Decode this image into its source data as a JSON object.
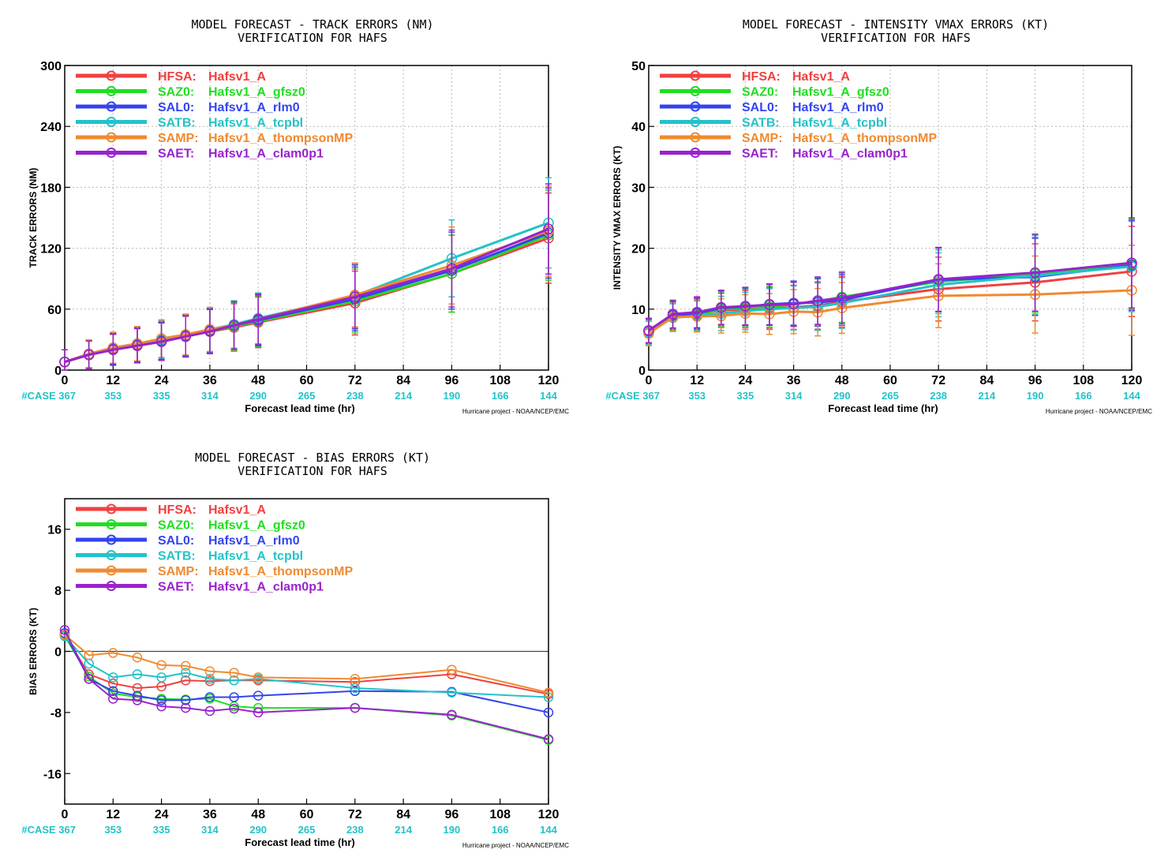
{
  "chart_data": [
    {
      "type": "line",
      "title": "MODEL FORECAST - TRACK ERRORS (NM)",
      "subtitle": "VERIFICATION FOR HAFS",
      "xlabel": "Forecast lead time (hr)",
      "ylabel": "TRACK ERRORS (NM)",
      "xlim": [
        0,
        120
      ],
      "ylim": [
        0,
        300
      ],
      "x_ticks": [
        0,
        12,
        24,
        36,
        48,
        60,
        72,
        84,
        96,
        108,
        120
      ],
      "y_ticks": [
        0,
        60,
        120,
        180,
        240,
        300
      ],
      "case_label": "#CASE",
      "case_counts": [
        "367",
        "353",
        "335",
        "314",
        "290",
        "265",
        "238",
        "214",
        "190",
        "166",
        "144"
      ],
      "credit": "Hurricane project - NOAA/NCEP/EMC",
      "grid": true,
      "legend_position": "top-left",
      "error_bars": true,
      "x": [
        0,
        6,
        12,
        18,
        24,
        30,
        36,
        42,
        48,
        72,
        96,
        120
      ],
      "series": [
        {
          "code": "HFSA:",
          "name": "Hafsv1_A",
          "color": "#f04040",
          "values": [
            8,
            15,
            20,
            24,
            28,
            33,
            38,
            42,
            47,
            66,
            95,
            130
          ]
        },
        {
          "code": "SAZ0:",
          "name": "Hafsv1_A_gfsz0",
          "color": "#22dd22",
          "values": [
            8,
            15,
            21,
            25,
            29,
            34,
            38,
            43,
            48,
            68,
            95,
            133
          ]
        },
        {
          "code": "SAL0:",
          "name": "Hafsv1_A_rlm0",
          "color": "#3344ee",
          "values": [
            8,
            16,
            21,
            25,
            29,
            34,
            39,
            44,
            49,
            70,
            98,
            135
          ]
        },
        {
          "code": "SATB:",
          "name": "Hafsv1_A_tcpbl",
          "color": "#22c3c8",
          "values": [
            8,
            16,
            22,
            26,
            30,
            35,
            40,
            45,
            51,
            73,
            110,
            145
          ]
        },
        {
          "code": "SAMP:",
          "name": "Hafsv1_A_thompsonMP",
          "color": "#f08a30",
          "values": [
            8,
            16,
            22,
            26,
            31,
            35,
            40,
            44,
            50,
            74,
            103,
            137
          ]
        },
        {
          "code": "SAET:",
          "name": "Hafsv1_A_clam0p1",
          "color": "#9922cc",
          "values": [
            8,
            15,
            20,
            24,
            28,
            33,
            38,
            44,
            50,
            72,
            100,
            139
          ]
        }
      ]
    },
    {
      "type": "line",
      "title": "MODEL FORECAST - INTENSITY VMAX ERRORS (KT)",
      "subtitle": "VERIFICATION FOR HAFS",
      "xlabel": "Forecast lead time (hr)",
      "ylabel": "INTENSITY VMAX ERRORS (KT)",
      "xlim": [
        0,
        120
      ],
      "ylim": [
        0,
        50
      ],
      "x_ticks": [
        0,
        12,
        24,
        36,
        48,
        60,
        72,
        84,
        96,
        108,
        120
      ],
      "y_ticks": [
        0,
        10,
        20,
        30,
        40,
        50
      ],
      "case_label": "#CASE",
      "case_counts": [
        "367",
        "353",
        "335",
        "314",
        "290",
        "265",
        "238",
        "214",
        "190",
        "166",
        "144"
      ],
      "credit": "Hurricane project - NOAA/NCEP/EMC",
      "grid": true,
      "legend_position": "top-left",
      "error_bars": true,
      "x": [
        0,
        6,
        12,
        18,
        24,
        30,
        36,
        42,
        48,
        72,
        96,
        120
      ],
      "series": [
        {
          "code": "HFSA:",
          "name": "Hafsv1_A",
          "color": "#f04040",
          "values": [
            6.5,
            9.0,
            9.2,
            9.8,
            10.0,
            10.2,
            10.3,
            10.6,
            11.2,
            13.3,
            14.4,
            16.2
          ]
        },
        {
          "code": "SAZ0:",
          "name": "Hafsv1_A_gfsz0",
          "color": "#22dd22",
          "values": [
            6.3,
            8.8,
            9.0,
            10.0,
            10.2,
            10.4,
            10.8,
            11.3,
            12.0,
            14.5,
            15.8,
            17.4
          ]
        },
        {
          "code": "SAL0:",
          "name": "Hafsv1_A_rlm0",
          "color": "#3344ee",
          "values": [
            6.4,
            9.0,
            9.3,
            10.2,
            10.4,
            10.8,
            11.0,
            11.1,
            11.5,
            14.8,
            15.3,
            17.2
          ]
        },
        {
          "code": "SATB:",
          "name": "Hafsv1_A_tcpbl",
          "color": "#22c3c8",
          "values": [
            6.2,
            8.6,
            8.9,
            9.3,
            9.7,
            10.0,
            10.2,
            10.4,
            11.0,
            14.0,
            15.5,
            17.0
          ]
        },
        {
          "code": "SAMP:",
          "name": "Hafsv1_A_thompsonMP",
          "color": "#f08a30",
          "values": [
            6.0,
            8.7,
            8.8,
            8.9,
            9.3,
            9.2,
            9.6,
            9.5,
            10.2,
            12.2,
            12.4,
            13.1
          ]
        },
        {
          "code": "SAET:",
          "name": "Hafsv1_A_clam0p1",
          "color": "#9922cc",
          "values": [
            6.5,
            9.2,
            9.5,
            10.3,
            10.5,
            10.7,
            10.8,
            11.4,
            11.8,
            14.9,
            16.0,
            17.6
          ]
        }
      ]
    },
    {
      "type": "line",
      "title": "MODEL FORECAST - BIAS ERRORS (KT)",
      "subtitle": "VERIFICATION FOR HAFS",
      "xlabel": "Forecast lead time (hr)",
      "ylabel": "BIAS ERRORS (KT)",
      "xlim": [
        0,
        120
      ],
      "ylim": [
        -20,
        20
      ],
      "x_ticks": [
        0,
        12,
        24,
        36,
        48,
        60,
        72,
        84,
        96,
        108,
        120
      ],
      "y_ticks": [
        -16,
        -8,
        0,
        8,
        16
      ],
      "case_label": "#CASE",
      "case_counts": [
        "367",
        "353",
        "335",
        "314",
        "290",
        "265",
        "238",
        "214",
        "190",
        "166",
        "144"
      ],
      "credit": "Hurricane project - NOAA/NCEP/EMC",
      "grid": false,
      "zero_line": true,
      "legend_position": "top-left",
      "error_bars": false,
      "x": [
        0,
        6,
        12,
        18,
        24,
        30,
        36,
        42,
        48,
        72,
        96,
        120
      ],
      "series": [
        {
          "code": "HFSA:",
          "name": "Hafsv1_A",
          "color": "#f04040",
          "values": [
            2.2,
            -3.0,
            -4.2,
            -4.8,
            -4.6,
            -3.8,
            -3.9,
            -3.8,
            -3.8,
            -4.0,
            -3.0,
            -5.6
          ]
        },
        {
          "code": "SAZ0:",
          "name": "Hafsv1_A_gfsz0",
          "color": "#22dd22",
          "values": [
            2.0,
            -3.3,
            -5.5,
            -6.0,
            -6.2,
            -6.3,
            -6.2,
            -7.2,
            -7.4,
            -7.4,
            -8.4,
            -11.6
          ]
        },
        {
          "code": "SAL0:",
          "name": "Hafsv1_A_rlm0",
          "color": "#3344ee",
          "values": [
            2.4,
            -3.6,
            -5.2,
            -5.8,
            -6.4,
            -6.4,
            -6.0,
            -6.0,
            -5.8,
            -5.2,
            -5.3,
            -8.0
          ]
        },
        {
          "code": "SATB:",
          "name": "Hafsv1_A_tcpbl",
          "color": "#22c3c8",
          "values": [
            2.0,
            -1.6,
            -3.4,
            -3.0,
            -3.4,
            -2.8,
            -3.6,
            -3.8,
            -3.6,
            -4.8,
            -5.4,
            -6.0
          ]
        },
        {
          "code": "SAMP:",
          "name": "Hafsv1_A_thompsonMP",
          "color": "#f08a30",
          "values": [
            2.2,
            -0.5,
            -0.2,
            -0.8,
            -1.8,
            -1.9,
            -2.6,
            -2.8,
            -3.4,
            -3.6,
            -2.4,
            -5.4
          ]
        },
        {
          "code": "SAET:",
          "name": "Hafsv1_A_clam0p1",
          "color": "#9922cc",
          "values": [
            2.8,
            -3.6,
            -6.2,
            -6.4,
            -7.2,
            -7.4,
            -7.8,
            -7.5,
            -8.0,
            -7.4,
            -8.3,
            -11.5
          ]
        }
      ]
    }
  ]
}
